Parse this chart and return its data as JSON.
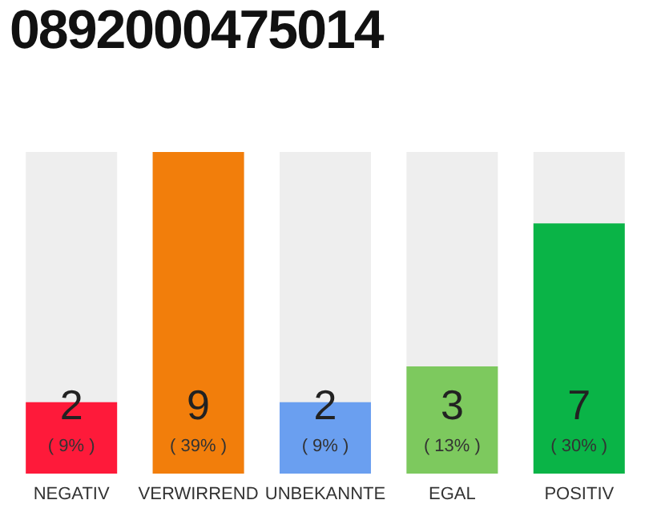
{
  "chart_data": {
    "type": "bar",
    "title": "0892000475014",
    "categories": [
      "NEGATIV",
      "VERWIRREND",
      "UNBEKANNTE",
      "EGAL",
      "POSITIV"
    ],
    "values": [
      2,
      9,
      2,
      3,
      7
    ],
    "colors": [
      "#fe1a3a",
      "#f27e0b",
      "#6a9ff0",
      "#7dc95e",
      "#0ab447"
    ],
    "data_labels": true,
    "annotations": [
      "( 9% )",
      "( 39% )",
      "( 9% )",
      "( 13% )",
      "( 30% )"
    ],
    "grid": false,
    "legend": false
  }
}
